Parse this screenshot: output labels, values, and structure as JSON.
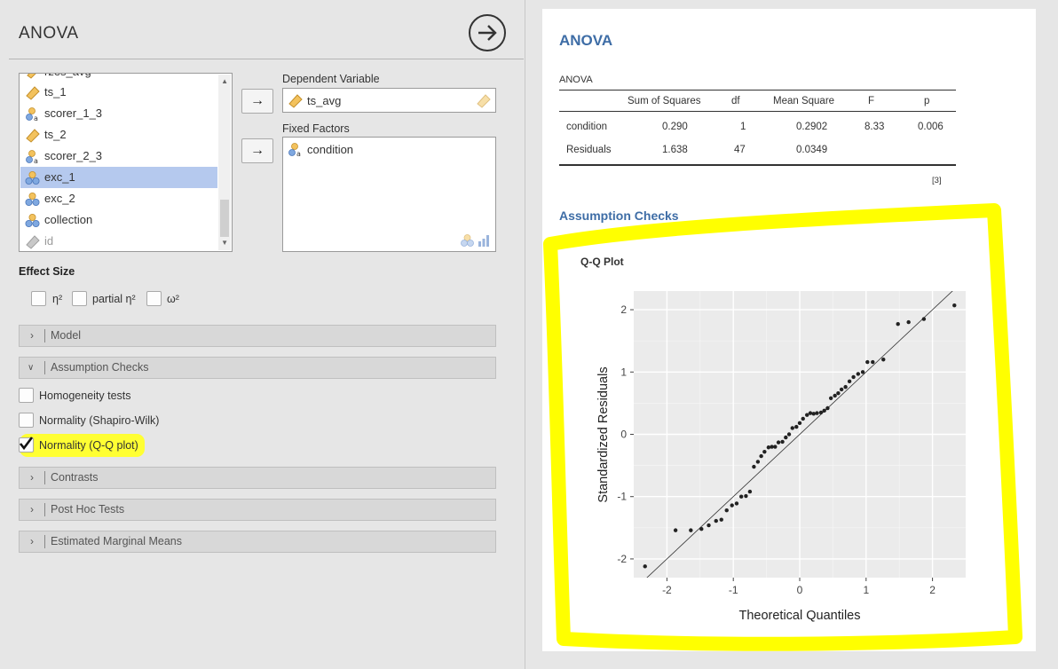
{
  "analysis": {
    "title": "ANOVA"
  },
  "variables": [
    {
      "label": "rzes_avg",
      "type": "continuous",
      "partial": true
    },
    {
      "label": "ts_1",
      "type": "continuous"
    },
    {
      "label": "scorer_1_3",
      "type": "nominal-text"
    },
    {
      "label": "ts_2",
      "type": "continuous"
    },
    {
      "label": "scorer_2_3",
      "type": "nominal-text"
    },
    {
      "label": "exc_1",
      "type": "nominal",
      "selected": true
    },
    {
      "label": "exc_2",
      "type": "nominal"
    },
    {
      "label": "collection",
      "type": "nominal"
    },
    {
      "label": "id",
      "type": "id",
      "muted": true
    }
  ],
  "assign": {
    "dependent_label": "Dependent Variable",
    "dependent_value": "ts_avg",
    "fixed_label": "Fixed Factors",
    "fixed_value": "condition",
    "move_arrow": "→"
  },
  "effect_size": {
    "heading": "Effect Size",
    "options": [
      "η²",
      "partial η²",
      "ω²"
    ]
  },
  "sections": {
    "model": "Model",
    "assumption_checks": "Assumption Checks",
    "contrasts": "Contrasts",
    "post_hoc": "Post Hoc Tests",
    "emm": "Estimated Marginal Means"
  },
  "assumption_options": [
    {
      "label": "Homogeneity tests",
      "checked": false
    },
    {
      "label": "Normality (Shapiro-Wilk)",
      "checked": false
    },
    {
      "label": "Normality (Q-Q plot)",
      "checked": true
    }
  ],
  "results": {
    "heading": "ANOVA",
    "table_title": "ANOVA",
    "columns": [
      "Sum of Squares",
      "df",
      "Mean Square",
      "F",
      "p"
    ],
    "rows": [
      {
        "name": "condition",
        "ss": "0.290",
        "df": "1",
        "ms": "0.2902",
        "f": "8.33",
        "p": "0.006"
      },
      {
        "name": "Residuals",
        "ss": "1.638",
        "df": "47",
        "ms": "0.0349",
        "f": "",
        "p": ""
      }
    ],
    "footnote": "[3]",
    "assumption_heading": "Assumption Checks",
    "plot_title": "Q-Q Plot"
  },
  "colors": {
    "heading_blue": "#3e6da6",
    "highlight_yellow": "#ffff33",
    "selected_row": "#b5c9ee"
  },
  "chart_data": {
    "type": "scatter",
    "title": "Q-Q Plot",
    "xlabel": "Theoretical Quantiles",
    "ylabel": "Standardized Residuals",
    "xlim": [
      -2.5,
      2.5
    ],
    "ylim": [
      -2.3,
      2.3
    ],
    "xticks": [
      -2,
      -1,
      0,
      1,
      2
    ],
    "yticks": [
      -2,
      -1,
      0,
      1,
      2
    ],
    "grid": true,
    "reference_line": {
      "slope": 1,
      "intercept": 0
    },
    "points": [
      [
        -2.33,
        -2.12
      ],
      [
        -1.87,
        -1.54
      ],
      [
        -1.64,
        -1.54
      ],
      [
        -1.48,
        -1.52
      ],
      [
        -1.37,
        -1.46
      ],
      [
        -1.26,
        -1.39
      ],
      [
        -1.18,
        -1.37
      ],
      [
        -1.1,
        -1.22
      ],
      [
        -1.02,
        -1.14
      ],
      [
        -0.95,
        -1.11
      ],
      [
        -0.88,
        -1.0
      ],
      [
        -0.81,
        -0.99
      ],
      [
        -0.75,
        -0.92
      ],
      [
        -0.69,
        -0.52
      ],
      [
        -0.63,
        -0.44
      ],
      [
        -0.58,
        -0.35
      ],
      [
        -0.53,
        -0.28
      ],
      [
        -0.47,
        -0.21
      ],
      [
        -0.42,
        -0.2
      ],
      [
        -0.37,
        -0.2
      ],
      [
        -0.32,
        -0.13
      ],
      [
        -0.26,
        -0.12
      ],
      [
        -0.21,
        -0.05
      ],
      [
        -0.16,
        0.0
      ],
      [
        -0.11,
        0.1
      ],
      [
        -0.05,
        0.12
      ],
      [
        0.0,
        0.18
      ],
      [
        0.05,
        0.25
      ],
      [
        0.11,
        0.31
      ],
      [
        0.16,
        0.34
      ],
      [
        0.21,
        0.33
      ],
      [
        0.26,
        0.34
      ],
      [
        0.32,
        0.35
      ],
      [
        0.37,
        0.38
      ],
      [
        0.42,
        0.42
      ],
      [
        0.47,
        0.58
      ],
      [
        0.53,
        0.62
      ],
      [
        0.58,
        0.66
      ],
      [
        0.63,
        0.72
      ],
      [
        0.69,
        0.76
      ],
      [
        0.75,
        0.85
      ],
      [
        0.81,
        0.92
      ],
      [
        0.88,
        0.97
      ],
      [
        0.95,
        1.0
      ],
      [
        1.02,
        1.16
      ],
      [
        1.1,
        1.16
      ],
      [
        1.26,
        1.2
      ],
      [
        1.48,
        1.77
      ],
      [
        1.64,
        1.8
      ],
      [
        1.87,
        1.85
      ],
      [
        2.33,
        2.07
      ]
    ]
  }
}
